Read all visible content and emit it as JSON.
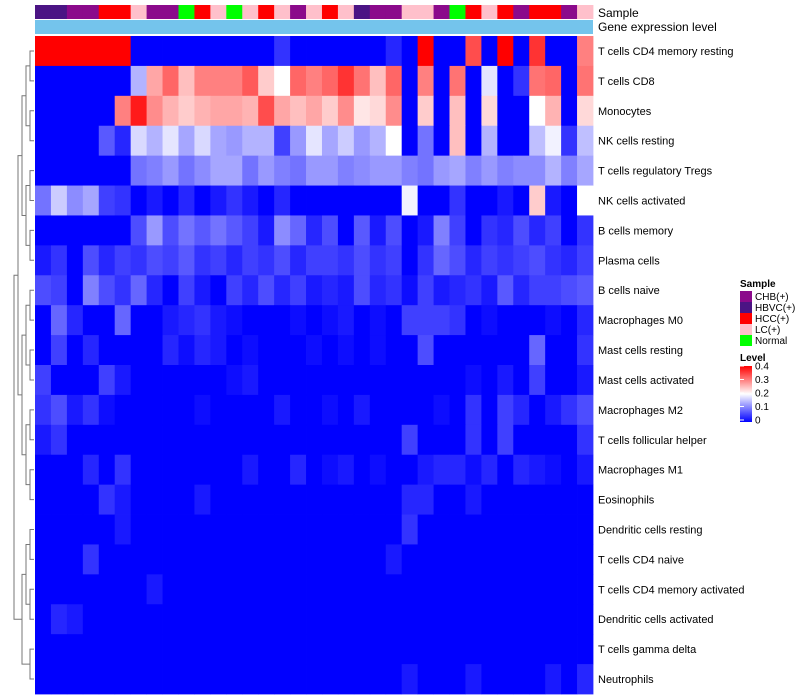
{
  "chart_data": {
    "type": "heatmap",
    "title": "",
    "annotation_rows": [
      "Sample",
      "Gene expression level"
    ],
    "gene_expression_color": "#74c4ec",
    "sample_colors": {
      "CHB(+)": "#8b0a8b",
      "HBVC(+)": "#4b1484",
      "HCC(+)": "#ff0000",
      "LC(+)": "#ffc0cb",
      "Normal": "#00ff00"
    },
    "sample_legend_title": "Sample",
    "sample_legend_entries": [
      "CHB(+)",
      "HBVC(+)",
      "HCC(+)",
      "LC(+)",
      "Normal"
    ],
    "samples": [
      "HBVC(+)",
      "HBVC(+)",
      "CHB(+)",
      "CHB(+)",
      "HCC(+)",
      "HCC(+)",
      "LC(+)",
      "CHB(+)",
      "CHB(+)",
      "Normal",
      "HCC(+)",
      "LC(+)",
      "Normal",
      "LC(+)",
      "HCC(+)",
      "LC(+)",
      "CHB(+)",
      "LC(+)",
      "HCC(+)",
      "LC(+)",
      "HBVC(+)",
      "CHB(+)",
      "CHB(+)",
      "LC(+)",
      "LC(+)",
      "CHB(+)",
      "Normal",
      "HCC(+)",
      "LC(+)",
      "HCC(+)",
      "CHB(+)",
      "HCC(+)",
      "HCC(+)",
      "CHB(+)",
      "LC(+)"
    ],
    "level_legend_title": "Level",
    "level_ticks": [
      0.4,
      0.3,
      0.2,
      0.1,
      0
    ],
    "level_range": [
      0,
      0.4
    ],
    "color_scale": [
      "#0000ff",
      "#ffffff",
      "#ff0000"
    ],
    "rows": [
      "T cells CD4 memory resting",
      "T cells CD8",
      "Monocytes",
      "NK cells resting",
      "T cells regulatory  Tregs",
      "NK cells activated",
      "B cells memory",
      "Plasma cells",
      "B cells naive",
      "Macrophages M0",
      "Mast cells resting",
      "Mast cells activated",
      "Macrophages M2",
      "T cells follicular helper",
      "Macrophages M1",
      "Eosinophils",
      "Dendritic cells resting",
      "T cells CD4 naive",
      "T cells CD4 memory activated",
      "Dendritic cells activated",
      "T cells gamma delta",
      "Neutrophils"
    ],
    "values": [
      [
        0.42,
        0.42,
        0.42,
        0.42,
        0.42,
        0.42,
        0.0,
        0.0,
        0.0,
        0.0,
        0.0,
        0.0,
        0.0,
        0.0,
        0.0,
        0.04,
        0.0,
        0.0,
        0.0,
        0.0,
        0.0,
        0.0,
        0.03,
        0.0,
        0.42,
        0.0,
        0.0,
        0.34,
        0.0,
        0.42,
        0.0,
        0.36,
        0.0,
        0.0,
        0.3
      ],
      [
        0.0,
        0.0,
        0.0,
        0.0,
        0.0,
        0.0,
        0.14,
        0.27,
        0.32,
        0.25,
        0.3,
        0.3,
        0.3,
        0.33,
        0.24,
        0.2,
        0.32,
        0.3,
        0.32,
        0.36,
        0.31,
        0.25,
        0.32,
        0.0,
        0.3,
        0.0,
        0.31,
        0.0,
        0.18,
        0.0,
        0.04,
        0.31,
        0.32,
        0.0,
        0.31
      ],
      [
        0.0,
        0.0,
        0.0,
        0.0,
        0.0,
        0.3,
        0.38,
        0.29,
        0.26,
        0.24,
        0.26,
        0.27,
        0.27,
        0.26,
        0.34,
        0.27,
        0.25,
        0.27,
        0.24,
        0.29,
        0.22,
        0.23,
        0.29,
        0.0,
        0.24,
        0.0,
        0.25,
        0.0,
        0.23,
        0.0,
        0.0,
        0.2,
        0.26,
        0.0,
        0.23
      ],
      [
        0.0,
        0.0,
        0.0,
        0.0,
        0.07,
        0.03,
        0.17,
        0.14,
        0.18,
        0.13,
        0.17,
        0.13,
        0.12,
        0.14,
        0.14,
        0.05,
        0.12,
        0.18,
        0.13,
        0.16,
        0.12,
        0.14,
        0.2,
        0.0,
        0.09,
        0.0,
        0.25,
        0.0,
        0.14,
        0.0,
        0.0,
        0.15,
        0.19,
        0.04,
        0.15
      ],
      [
        0.0,
        0.0,
        0.0,
        0.0,
        0.0,
        0.0,
        0.09,
        0.1,
        0.12,
        0.09,
        0.11,
        0.13,
        0.13,
        0.09,
        0.12,
        0.1,
        0.09,
        0.12,
        0.12,
        0.1,
        0.11,
        0.12,
        0.12,
        0.1,
        0.09,
        0.12,
        0.13,
        0.1,
        0.12,
        0.1,
        0.11,
        0.11,
        0.14,
        0.1,
        0.13
      ],
      [
        0.09,
        0.16,
        0.11,
        0.13,
        0.05,
        0.04,
        0.0,
        0.02,
        0.0,
        0.03,
        0.0,
        0.02,
        0.04,
        0.02,
        0.0,
        0.03,
        0.0,
        0.0,
        0.0,
        0.0,
        0.0,
        0.0,
        0.0,
        0.19,
        0.0,
        0.0,
        0.04,
        0.0,
        0.0,
        0.02,
        0.0,
        0.24,
        0.02,
        0.0,
        0.2
      ],
      [
        0.0,
        0.0,
        0.0,
        0.0,
        0.0,
        0.0,
        0.06,
        0.12,
        0.06,
        0.09,
        0.07,
        0.09,
        0.07,
        0.05,
        0.02,
        0.11,
        0.08,
        0.03,
        0.06,
        0.0,
        0.07,
        0.02,
        0.06,
        0.0,
        0.02,
        0.1,
        0.05,
        0.0,
        0.04,
        0.03,
        0.06,
        0.03,
        0.05,
        0.0,
        0.04
      ],
      [
        0.02,
        0.04,
        0.0,
        0.06,
        0.03,
        0.05,
        0.04,
        0.06,
        0.05,
        0.07,
        0.04,
        0.05,
        0.03,
        0.05,
        0.04,
        0.06,
        0.03,
        0.05,
        0.05,
        0.04,
        0.06,
        0.04,
        0.05,
        0.0,
        0.04,
        0.08,
        0.06,
        0.03,
        0.05,
        0.04,
        0.05,
        0.06,
        0.04,
        0.03,
        0.05
      ],
      [
        0.06,
        0.05,
        0.0,
        0.1,
        0.06,
        0.04,
        0.08,
        0.03,
        0.0,
        0.05,
        0.02,
        0.0,
        0.05,
        0.03,
        0.06,
        0.03,
        0.05,
        0.02,
        0.03,
        0.02,
        0.06,
        0.03,
        0.04,
        0.01,
        0.05,
        0.02,
        0.03,
        0.04,
        0.02,
        0.07,
        0.03,
        0.05,
        0.05,
        0.06,
        0.07
      ],
      [
        0.0,
        0.08,
        0.03,
        0.0,
        0.0,
        0.08,
        0.0,
        0.0,
        0.02,
        0.03,
        0.04,
        0.02,
        0.01,
        0.0,
        0.0,
        0.0,
        0.01,
        0.0,
        0.01,
        0.02,
        0.0,
        0.01,
        0.0,
        0.05,
        0.05,
        0.05,
        0.04,
        0.0,
        0.01,
        0.0,
        0.0,
        0.0,
        0.01,
        0.0,
        0.03
      ],
      [
        0.0,
        0.05,
        0.0,
        0.03,
        0.0,
        0.0,
        0.0,
        0.0,
        0.03,
        0.01,
        0.03,
        0.02,
        0.0,
        0.01,
        0.0,
        0.0,
        0.0,
        0.01,
        0.0,
        0.01,
        0.0,
        0.01,
        0.0,
        0.0,
        0.06,
        0.0,
        0.0,
        0.0,
        0.0,
        0.0,
        0.0,
        0.08,
        0.0,
        0.0,
        0.04
      ],
      [
        0.05,
        0.0,
        0.0,
        0.0,
        0.05,
        0.02,
        0.0,
        0.0,
        0.0,
        0.0,
        0.0,
        0.0,
        0.01,
        0.02,
        0.0,
        0.0,
        0.0,
        0.0,
        0.0,
        0.0,
        0.0,
        0.0,
        0.0,
        0.0,
        0.0,
        0.0,
        0.0,
        0.01,
        0.0,
        0.02,
        0.0,
        0.05,
        0.0,
        0.0,
        0.02
      ],
      [
        0.04,
        0.06,
        0.02,
        0.04,
        0.01,
        0.0,
        0.0,
        0.0,
        0.0,
        0.0,
        0.01,
        0.0,
        0.0,
        0.0,
        0.0,
        0.02,
        0.0,
        0.0,
        0.01,
        0.0,
        0.02,
        0.0,
        0.0,
        0.0,
        0.0,
        0.01,
        0.0,
        0.04,
        0.0,
        0.05,
        0.03,
        0.0,
        0.02,
        0.04,
        0.06
      ],
      [
        0.02,
        0.04,
        0.0,
        0.0,
        0.0,
        0.0,
        0.0,
        0.0,
        0.0,
        0.0,
        0.0,
        0.0,
        0.0,
        0.0,
        0.0,
        0.0,
        0.0,
        0.0,
        0.0,
        0.0,
        0.0,
        0.0,
        0.0,
        0.05,
        0.0,
        0.0,
        0.0,
        0.04,
        0.0,
        0.05,
        0.0,
        0.0,
        0.0,
        0.0,
        0.04
      ],
      [
        0.0,
        0.0,
        0.0,
        0.03,
        0.0,
        0.04,
        0.0,
        0.0,
        0.0,
        0.0,
        0.0,
        0.0,
        0.0,
        0.02,
        0.0,
        0.0,
        0.03,
        0.0,
        0.01,
        0.02,
        0.0,
        0.01,
        0.0,
        0.0,
        0.02,
        0.03,
        0.03,
        0.01,
        0.03,
        0.0,
        0.03,
        0.02,
        0.01,
        0.0,
        0.02
      ],
      [
        0.0,
        0.0,
        0.0,
        0.0,
        0.04,
        0.02,
        0.0,
        0.0,
        0.0,
        0.0,
        0.02,
        0.0,
        0.0,
        0.0,
        0.0,
        0.0,
        0.0,
        0.0,
        0.0,
        0.0,
        0.0,
        0.0,
        0.0,
        0.03,
        0.03,
        0.0,
        0.0,
        0.02,
        0.0,
        0.0,
        0.0,
        0.0,
        0.0,
        0.0,
        0.0
      ],
      [
        0.0,
        0.0,
        0.0,
        0.0,
        0.0,
        0.02,
        0.0,
        0.0,
        0.0,
        0.0,
        0.0,
        0.0,
        0.0,
        0.0,
        0.0,
        0.0,
        0.0,
        0.0,
        0.0,
        0.0,
        0.0,
        0.0,
        0.0,
        0.04,
        0.0,
        0.0,
        0.0,
        0.0,
        0.0,
        0.0,
        0.0,
        0.0,
        0.0,
        0.0,
        0.0
      ],
      [
        0.0,
        0.0,
        0.0,
        0.04,
        0.0,
        0.0,
        0.0,
        0.0,
        0.0,
        0.0,
        0.0,
        0.0,
        0.0,
        0.0,
        0.0,
        0.0,
        0.0,
        0.0,
        0.0,
        0.0,
        0.0,
        0.0,
        0.02,
        0.0,
        0.0,
        0.0,
        0.0,
        0.0,
        0.0,
        0.0,
        0.0,
        0.0,
        0.0,
        0.0,
        0.0
      ],
      [
        0.0,
        0.0,
        0.0,
        0.0,
        0.0,
        0.0,
        0.0,
        0.02,
        0.0,
        0.0,
        0.0,
        0.0,
        0.0,
        0.0,
        0.0,
        0.0,
        0.0,
        0.0,
        0.0,
        0.0,
        0.0,
        0.0,
        0.0,
        0.0,
        0.0,
        0.0,
        0.0,
        0.0,
        0.0,
        0.0,
        0.0,
        0.0,
        0.0,
        0.0,
        0.0
      ],
      [
        0.0,
        0.03,
        0.02,
        0.0,
        0.0,
        0.0,
        0.0,
        0.0,
        0.0,
        0.0,
        0.0,
        0.0,
        0.0,
        0.0,
        0.0,
        0.0,
        0.0,
        0.0,
        0.0,
        0.0,
        0.0,
        0.0,
        0.0,
        0.0,
        0.0,
        0.0,
        0.0,
        0.0,
        0.0,
        0.0,
        0.0,
        0.0,
        0.0,
        0.0,
        0.0
      ],
      [
        0.0,
        0.0,
        0.0,
        0.0,
        0.0,
        0.0,
        0.0,
        0.0,
        0.0,
        0.0,
        0.0,
        0.0,
        0.0,
        0.0,
        0.0,
        0.0,
        0.0,
        0.0,
        0.0,
        0.0,
        0.0,
        0.0,
        0.0,
        0.0,
        0.0,
        0.0,
        0.0,
        0.0,
        0.0,
        0.0,
        0.0,
        0.0,
        0.0,
        0.0,
        0.0
      ],
      [
        0.0,
        0.0,
        0.0,
        0.0,
        0.0,
        0.0,
        0.0,
        0.0,
        0.0,
        0.0,
        0.0,
        0.0,
        0.0,
        0.0,
        0.0,
        0.0,
        0.0,
        0.0,
        0.0,
        0.0,
        0.0,
        0.0,
        0.0,
        0.02,
        0.0,
        0.0,
        0.0,
        0.02,
        0.0,
        0.0,
        0.0,
        0.0,
        0.02,
        0.0,
        0.03
      ]
    ]
  }
}
